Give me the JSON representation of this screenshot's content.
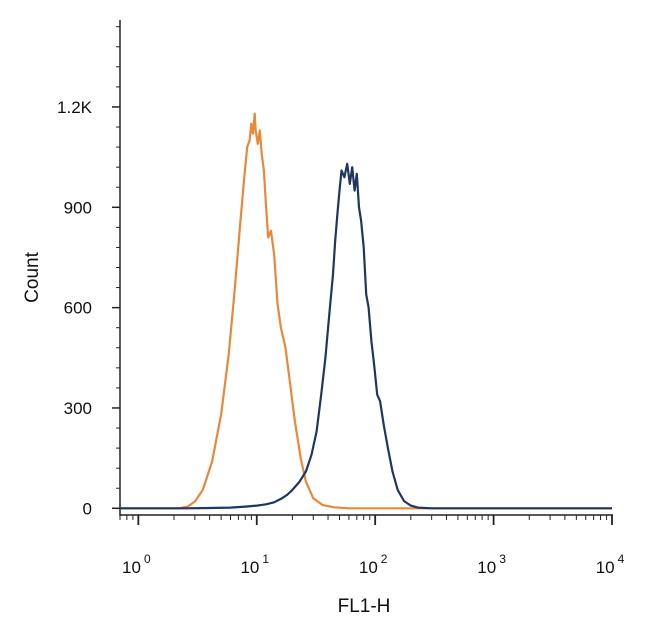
{
  "chart_data": {
    "type": "line",
    "title": "",
    "xlabel": "FL1-H",
    "ylabel": "Count",
    "x_scale": "log",
    "xlim": [
      0.7,
      10000
    ],
    "ylim": [
      -20,
      1460
    ],
    "x_ticks": [
      {
        "value": 1,
        "base": "10",
        "exp": "0"
      },
      {
        "value": 10,
        "base": "10",
        "exp": "1"
      },
      {
        "value": 100,
        "base": "10",
        "exp": "2"
      },
      {
        "value": 1000,
        "base": "10",
        "exp": "3"
      },
      {
        "value": 10000,
        "base": "10",
        "exp": "4"
      }
    ],
    "y_ticks": [
      {
        "value": 0,
        "label": "0"
      },
      {
        "value": 300,
        "label": "300"
      },
      {
        "value": 600,
        "label": "600"
      },
      {
        "value": 900,
        "label": "900"
      },
      {
        "value": 1200,
        "label": "1.2K"
      }
    ],
    "grid": false,
    "legend": "none",
    "series": [
      {
        "color": "#e8883a",
        "x": [
          0.7,
          2.2,
          2.6,
          3.0,
          3.5,
          4.2,
          5.0,
          5.8,
          6.5,
          7.2,
          7.8,
          8.3,
          8.7,
          9.0,
          9.3,
          9.6,
          9.8,
          10.2,
          10.6,
          11.0,
          11.5,
          12.0,
          12.5,
          13.2,
          14.0,
          15.0,
          16.0,
          17.5,
          19.0,
          21.0,
          23.5,
          26.0,
          30.0,
          36.0,
          45.0,
          60.0,
          100.0,
          300.0,
          1000.0,
          10000.0
        ],
        "y": [
          0,
          0,
          5,
          20,
          55,
          140,
          280,
          460,
          650,
          840,
          980,
          1080,
          1100,
          1150,
          1120,
          1180,
          1130,
          1090,
          1130,
          1060,
          1010,
          900,
          810,
          830,
          760,
          610,
          540,
          480,
          380,
          260,
          150,
          80,
          30,
          10,
          3,
          0,
          0,
          0,
          0,
          0
        ]
      },
      {
        "color": "#1f3760",
        "x": [
          0.7,
          2.5,
          4.0,
          6.0,
          8.0,
          10.0,
          12.0,
          14.0,
          16.0,
          18.0,
          20.0,
          23.0,
          26.0,
          29.0,
          32.0,
          35.0,
          38.0,
          41.0,
          44.0,
          46.0,
          48.0,
          50.0,
          52.0,
          55.0,
          58.0,
          61.0,
          64.0,
          67.0,
          70.0,
          73.0,
          76.0,
          80.0,
          84.0,
          88.0,
          93.0,
          98.0,
          104.0,
          110.0,
          118.0,
          128.0,
          140.0,
          155.0,
          175.0,
          200.0,
          230.0,
          300.0,
          10000.0
        ],
        "y": [
          0,
          0,
          1,
          2,
          5,
          8,
          12,
          18,
          28,
          40,
          55,
          80,
          110,
          160,
          230,
          340,
          450,
          580,
          700,
          800,
          880,
          950,
          1010,
          990,
          1030,
          970,
          1020,
          950,
          1000,
          900,
          860,
          780,
          640,
          600,
          500,
          430,
          340,
          320,
          250,
          180,
          110,
          55,
          22,
          8,
          2,
          0,
          0
        ]
      }
    ]
  }
}
